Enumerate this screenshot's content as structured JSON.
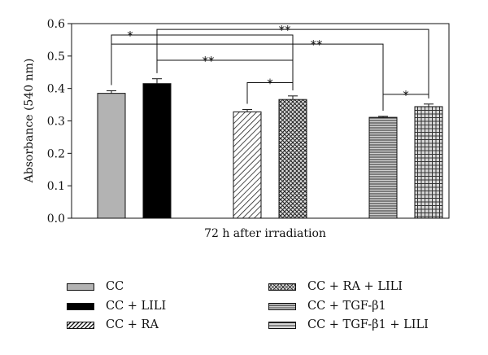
{
  "chart_data": {
    "type": "bar",
    "title": "",
    "xlabel": "72 h after irradiation",
    "ylabel": "Absorbance (540 nm)",
    "ylim": [
      0,
      0.6
    ],
    "yticks": [
      "0.0",
      "0.1",
      "0.2",
      "0.3",
      "0.4",
      "0.5",
      "0.6"
    ],
    "grid": false,
    "legend_position": "bottom",
    "series": [
      {
        "name": "CC",
        "value": 0.385,
        "error": 0.008,
        "pattern": "solid-gray",
        "color": "#b3b3b3"
      },
      {
        "name": "CC + LILI",
        "value": 0.415,
        "error": 0.015,
        "pattern": "solid-black",
        "color": "#000000"
      },
      {
        "name": "CC + RA",
        "value": 0.328,
        "error": 0.007,
        "pattern": "diagonal",
        "color": "#ffffff"
      },
      {
        "name": "CC + RA + LILI",
        "value": 0.366,
        "error": 0.011,
        "pattern": "crosshatch",
        "color": "#cfcfcf"
      },
      {
        "name": "CC + TGF-β1",
        "value": 0.311,
        "error": 0.003,
        "pattern": "horizontal",
        "color": "#9a9a9a"
      },
      {
        "name": "CC + TGF-β1 + LILI",
        "value": 0.344,
        "error": 0.008,
        "pattern": "grid",
        "color": "#b0b0b0"
      }
    ],
    "significance": [
      {
        "from": 0,
        "to": 3,
        "label": "*",
        "y": 0.565
      },
      {
        "from": 1,
        "to": 5,
        "label": "**",
        "y": 0.582
      },
      {
        "from": 0,
        "to": 4,
        "label": "**",
        "y": 0.537
      },
      {
        "from": 1,
        "to": 3,
        "label": "**",
        "y": 0.487
      },
      {
        "from": 2,
        "to": 3,
        "label": "*",
        "y": 0.418
      },
      {
        "from": 4,
        "to": 5,
        "label": "*",
        "y": 0.382
      }
    ]
  },
  "legend": {
    "items": [
      {
        "label": "CC",
        "pattern": "solid-gray"
      },
      {
        "label": "CC + RA + LILI",
        "pattern": "crosshatch"
      },
      {
        "label": "CC + LILI",
        "pattern": "solid-black"
      },
      {
        "label": "CC + TGF-β1",
        "pattern": "horizontal"
      },
      {
        "label": "CC + RA",
        "pattern": "diagonal"
      },
      {
        "label": "CC + TGF-β1 + LILI",
        "pattern": "grid"
      }
    ]
  }
}
